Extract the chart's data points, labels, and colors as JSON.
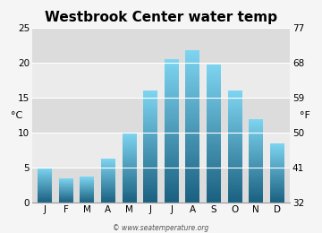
{
  "title": "Westbrook Center water temp",
  "months": [
    "J",
    "F",
    "M",
    "A",
    "M",
    "J",
    "J",
    "A",
    "S",
    "O",
    "N",
    "D"
  ],
  "values_c": [
    5.0,
    3.5,
    3.7,
    6.3,
    10.0,
    16.0,
    20.5,
    21.8,
    19.8,
    16.0,
    12.0,
    8.5
  ],
  "ylim_c": [
    0,
    25
  ],
  "yticks_c": [
    0,
    5,
    10,
    15,
    20,
    25
  ],
  "yticks_f": [
    32,
    41,
    50,
    59,
    68,
    77
  ],
  "ylabel_left": "°C",
  "ylabel_right": "°F",
  "bar_color_bottom": "#1a6080",
  "bar_color_top": "#7dd4f0",
  "bg_color_dark": "#dcdcdc",
  "bg_color_light": "#ebebeb",
  "figure_background": "#f5f5f5",
  "title_fontsize": 11,
  "tick_fontsize": 7.5,
  "label_fontsize": 8,
  "watermark": "© www.seatemperature.org"
}
